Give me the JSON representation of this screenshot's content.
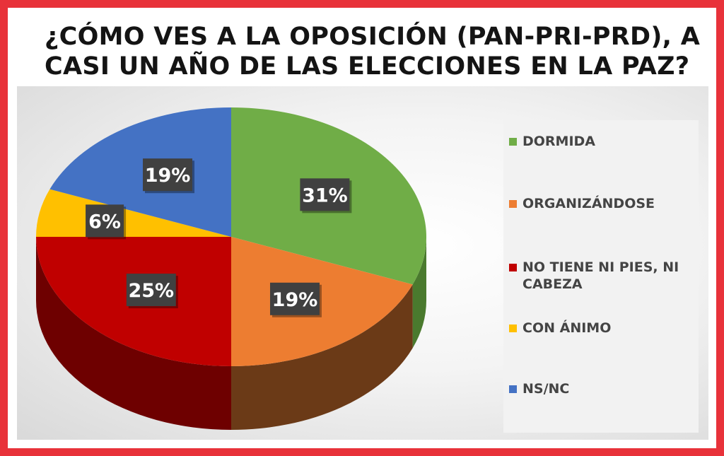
{
  "title": {
    "line1": "¿CÓMO VES A LA OPOSICIÓN (PAN-PRI-PRD), A",
    "line2": "CASI UN AÑO DE LAS ELECCIONES EN LA PAZ?"
  },
  "chart_data": {
    "type": "pie",
    "title": "¿CÓMO VES A LA OPOSICIÓN (PAN-PRI-PRD), A CASI UN AÑO DE LAS ELECCIONES EN LA PAZ?",
    "categories": [
      "DORMIDA",
      "ORGANIZÁNDOSE",
      "NO TIENE NI PIES, NI CABEZA",
      "CON ÁNIMO",
      "NS/NC"
    ],
    "values": [
      31,
      19,
      25,
      6,
      19
    ],
    "labels": [
      "31%",
      "19%",
      "25%",
      "6%",
      "19%"
    ],
    "colors": [
      "#70ad47",
      "#ed7d31",
      "#c00000",
      "#ffc000",
      "#4472c4"
    ],
    "side_colors": [
      "#4a7a2e",
      "#6b3a17",
      "#6e0000",
      "#8a6a00",
      "#2c4a80"
    ],
    "legend_position": "right",
    "style": "3d-tilted"
  }
}
